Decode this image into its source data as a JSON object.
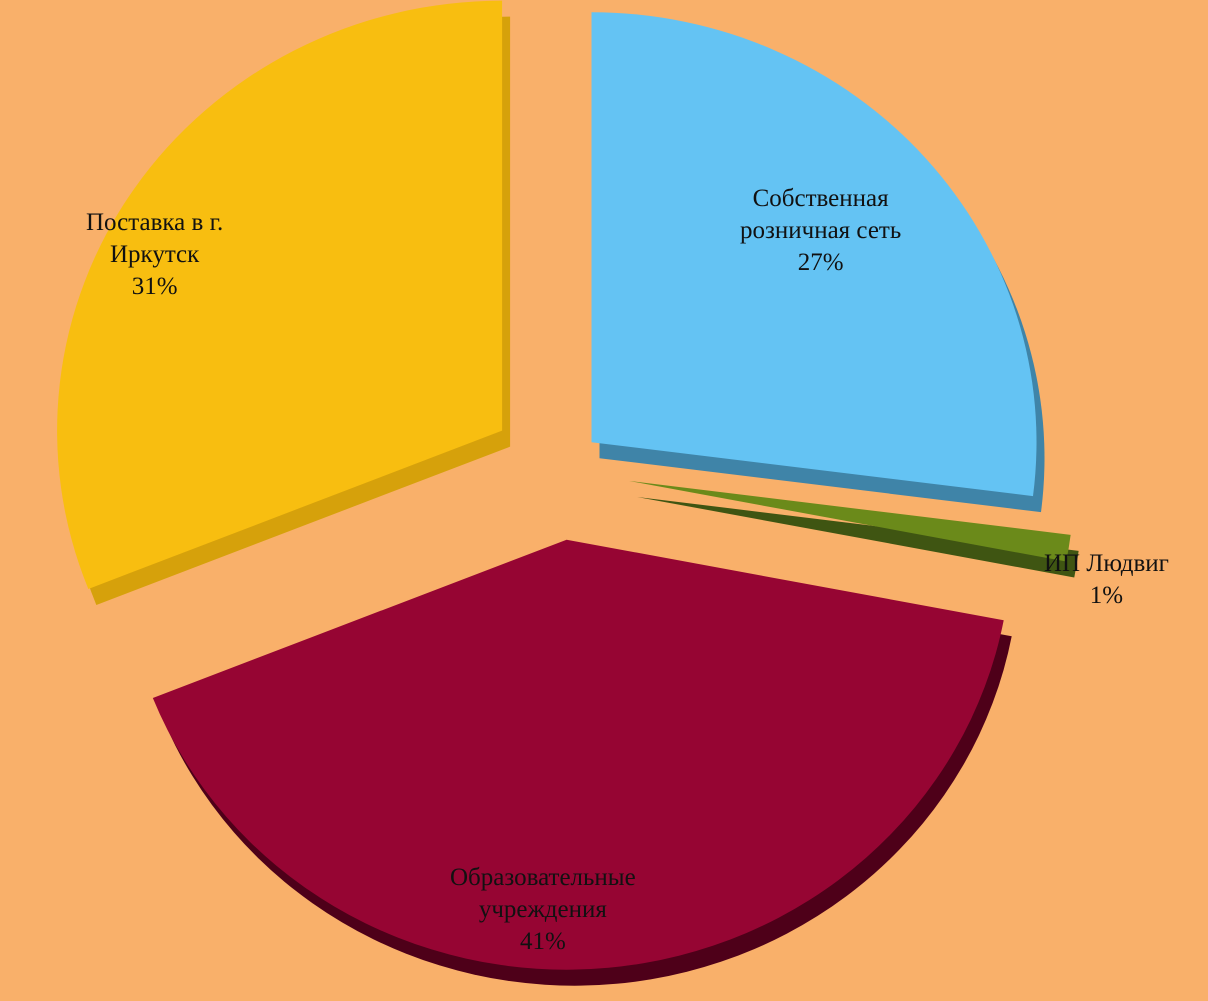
{
  "chart_data": {
    "type": "pie",
    "title": "",
    "legend": "none",
    "slices": [
      {
        "name": "Собственная розничная сеть",
        "label_lines": [
          "Собственная",
          "розничная сеть"
        ],
        "percent_label": "27%",
        "value": 27,
        "color": "#64C3F3",
        "side_color": "#3F84A8"
      },
      {
        "name": "ИП Людвиг",
        "label_lines": [
          "ИП Людвиг"
        ],
        "percent_label": "1%",
        "value": 1,
        "color": "#6B8A1A",
        "side_color": "#3F5512"
      },
      {
        "name": "Образовательные учреждения",
        "label_lines": [
          "Образовательные",
          "учреждения"
        ],
        "percent_label": "41%",
        "value": 41,
        "color": "#960533",
        "side_color": "#4E0019"
      },
      {
        "name": "Поставка в г. Иркутск",
        "label_lines": [
          "Поставка в г.",
          "Иркутск"
        ],
        "percent_label": "31%",
        "value": 31,
        "color": "#F8BE10",
        "side_color": "#D6A10B"
      }
    ]
  },
  "background_color": "#F9B06A"
}
